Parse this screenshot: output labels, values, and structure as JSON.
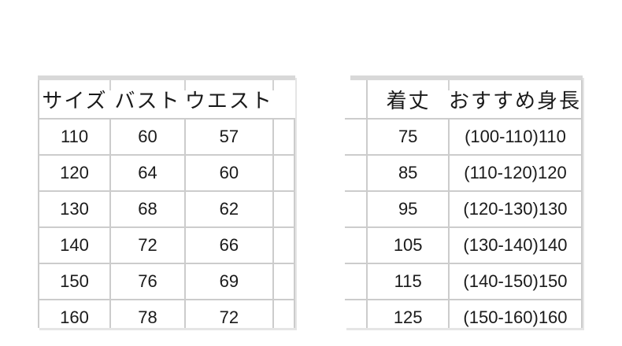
{
  "chart_data": [
    {
      "type": "table",
      "name": "size-bust-waist-table",
      "columns": [
        "サイズ",
        "バスト",
        "ウエスト"
      ],
      "rows": [
        [
          "110",
          "60",
          "57"
        ],
        [
          "120",
          "64",
          "60"
        ],
        [
          "130",
          "68",
          "62"
        ],
        [
          "140",
          "72",
          "66"
        ],
        [
          "150",
          "76",
          "69"
        ],
        [
          "160",
          "78",
          "72"
        ]
      ]
    },
    {
      "type": "table",
      "name": "length-height-table",
      "columns": [
        "着丈",
        "おすすめ身長"
      ],
      "rows": [
        [
          "75",
          "(100-110)110"
        ],
        [
          "85",
          "(110-120)120"
        ],
        [
          "95",
          "(120-130)130"
        ],
        [
          "105",
          "(130-140)140"
        ],
        [
          "115",
          "(140-150)150"
        ],
        [
          "125",
          "(150-160)160"
        ]
      ]
    }
  ],
  "colors": {
    "background": "#ffffff",
    "top_band": "#d8d8d8",
    "gridline": "#cccccc",
    "text": "#1a1a1a"
  }
}
